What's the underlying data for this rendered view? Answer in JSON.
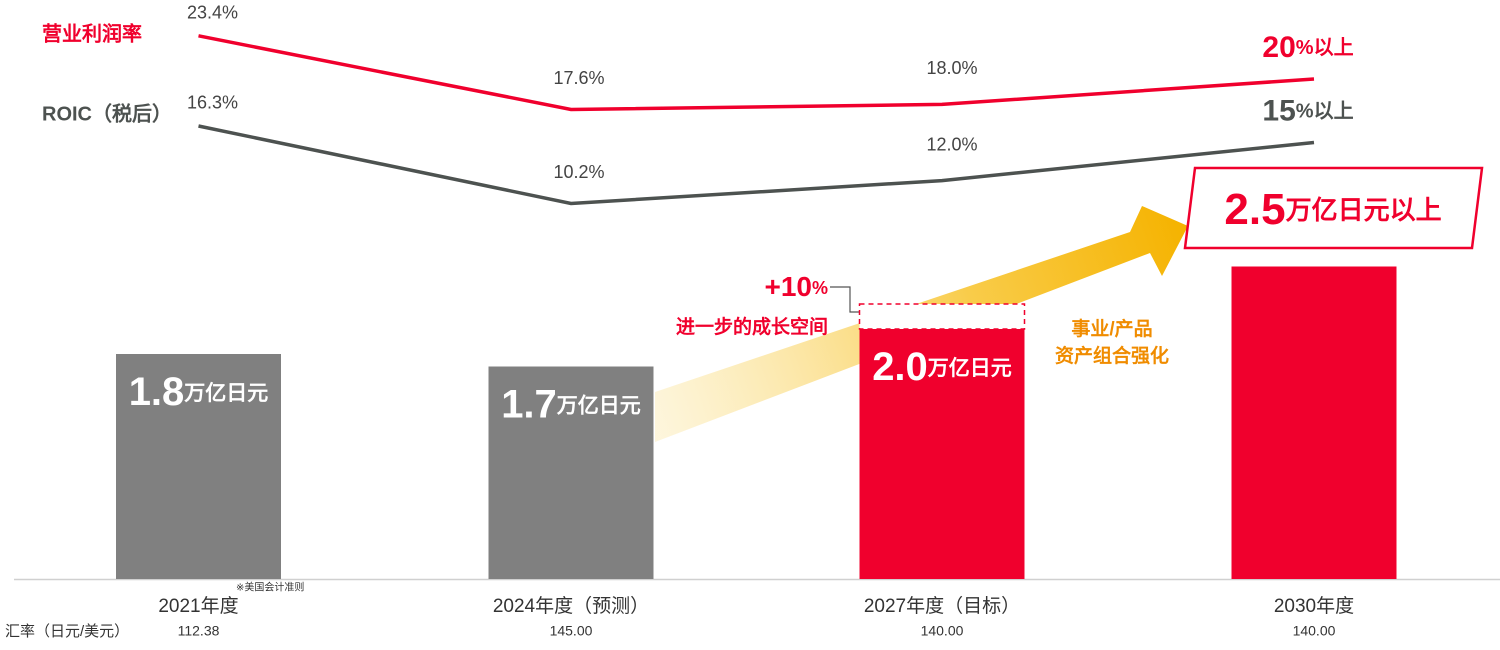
{
  "chart_data": {
    "type": "bar_line",
    "categories": [
      "2021年度",
      "2024年度（预测）",
      "2027年度（目标）",
      "2030年度"
    ],
    "bars": {
      "values": [
        1.8,
        1.7,
        2.0,
        2.5
      ],
      "value_labels": [
        "1.8万亿日元",
        "1.7万亿日元",
        "2.0万亿日元",
        "2.5万亿日元以上"
      ],
      "colors": [
        "#808080",
        "#808080",
        "#f0002d",
        "#f0002d"
      ]
    },
    "stretch": {
      "values": [
        null,
        null,
        0.2,
        null
      ],
      "label": "+10%",
      "note": "进一步的成长空间"
    },
    "series": [
      {
        "name": "营业利润率",
        "color": "#f0002d",
        "values": [
          23.4,
          17.6,
          18.0,
          20
        ],
        "value_labels": [
          "23.4%",
          "17.6%",
          "18.0%",
          "20%以上"
        ]
      },
      {
        "name": "ROIC（税后）",
        "color": "#4d5250",
        "values": [
          16.3,
          10.2,
          12.0,
          15
        ],
        "value_labels": [
          "16.3%",
          "10.2%",
          "12.0%",
          "15%以上"
        ]
      }
    ],
    "arrow_note": [
      "事业/产品",
      "资产组合强化"
    ],
    "footnote": "※美国会计准则",
    "exchange_rate": {
      "label": "汇率（日元/美元）",
      "values": [
        "112.38",
        "145.00",
        "140.00",
        "140.00"
      ]
    }
  }
}
